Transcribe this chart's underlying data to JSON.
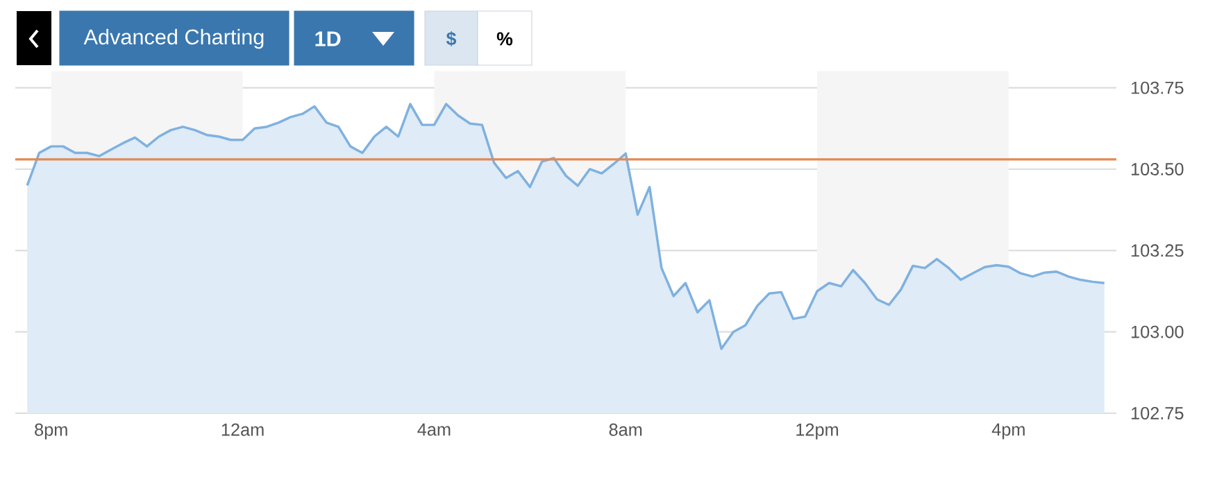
{
  "chart_data": {
    "type": "area",
    "annotations": [
      "Advanced Charting",
      "1D",
      "$",
      "%"
    ],
    "categories": [
      null,
      null,
      "8pm",
      null,
      null,
      null,
      null,
      null,
      null,
      null,
      null,
      null,
      null,
      null,
      null,
      null,
      null,
      null,
      "12am",
      null,
      null,
      null,
      null,
      null,
      null,
      null,
      null,
      null,
      null,
      null,
      null,
      null,
      null,
      null,
      "4am",
      null,
      null,
      null,
      null,
      null,
      null,
      null,
      null,
      null,
      null,
      null,
      null,
      null,
      null,
      null,
      "8am",
      null,
      null,
      null,
      null,
      null,
      null,
      null,
      null,
      null,
      null,
      null,
      null,
      null,
      null,
      null,
      "12pm",
      null,
      null,
      null,
      null,
      null,
      null,
      null,
      null,
      null,
      null,
      null,
      null,
      null,
      null,
      null,
      "4pm",
      null,
      null,
      null,
      null,
      null,
      null,
      null,
      null
    ],
    "series": [
      {
        "color": "#7fb1df",
        "values": [
          103.45,
          103.55,
          103.57,
          103.57,
          103.55,
          103.55,
          103.54,
          103.56,
          103.58,
          103.597,
          103.57,
          103.6,
          103.62,
          103.63,
          103.62,
          103.605,
          103.6,
          103.59,
          103.59,
          103.625,
          103.63,
          103.643,
          103.66,
          103.67,
          103.693,
          103.643,
          103.63,
          103.57,
          103.55,
          103.6,
          103.63,
          103.6,
          103.7,
          103.636,
          103.636,
          103.7,
          103.665,
          103.64,
          103.636,
          103.52,
          103.473,
          103.494,
          103.445,
          103.523,
          103.534,
          103.48,
          103.449,
          103.5,
          103.487,
          103.516,
          103.548,
          103.36,
          103.445,
          103.196,
          103.11,
          103.15,
          103.06,
          103.097,
          102.948,
          103.0,
          103.02,
          103.08,
          103.118,
          103.122,
          103.04,
          103.047,
          103.125,
          103.15,
          103.14,
          103.19,
          103.15,
          103.1,
          103.083,
          103.13,
          103.203,
          103.196,
          103.224,
          103.196,
          103.16,
          103.18,
          103.199,
          103.205,
          103.2,
          103.18,
          103.17,
          103.182,
          103.185,
          103.17,
          103.16,
          103.154,
          103.15
        ]
      }
    ],
    "ylim": [
      102.75,
      103.75
    ],
    "yticks": [
      {
        "value": 102.75,
        "label": "102.75"
      },
      {
        "value": 103.0,
        "label": "103.00"
      },
      {
        "value": 103.25,
        "label": "103.25"
      },
      {
        "value": 103.5,
        "label": "103.50"
      },
      {
        "value": 103.75,
        "label": "103.75"
      }
    ],
    "grid": "y",
    "ref_lines": [
      {
        "axis": "y",
        "value": 103.53,
        "color": "#e08a55"
      }
    ],
    "bands": [
      {
        "axis": "x",
        "from": "8pm",
        "to": "12am",
        "color": "#f5f5f5"
      },
      {
        "axis": "x",
        "from": "4am",
        "to": "8am",
        "color": "#f5f5f5"
      },
      {
        "axis": "x",
        "from": "12pm",
        "to": "4pm",
        "color": "#f5f5f5"
      }
    ]
  }
}
